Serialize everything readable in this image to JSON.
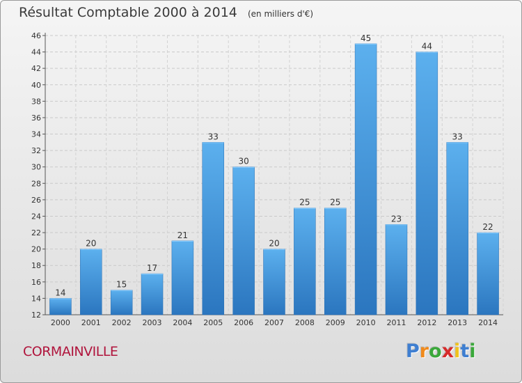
{
  "chart_data": {
    "type": "bar",
    "title": "Résultat Comptable 2000 à 2014",
    "subtitle": "(en milliers d'€)",
    "xlabel": "",
    "ylabel": "",
    "categories": [
      "2000",
      "2001",
      "2002",
      "2003",
      "2004",
      "2005",
      "2006",
      "2007",
      "2008",
      "2009",
      "2010",
      "2011",
      "2012",
      "2013",
      "2014"
    ],
    "values": [
      14,
      20,
      15,
      17,
      21,
      33,
      30,
      20,
      25,
      25,
      45,
      23,
      44,
      33,
      22
    ],
    "ylim": [
      12,
      46
    ],
    "yticks": [
      12,
      14,
      16,
      18,
      20,
      22,
      24,
      26,
      28,
      30,
      32,
      34,
      36,
      38,
      40,
      42,
      44,
      46
    ],
    "grid": true,
    "bar_color": "#3d8fd6"
  },
  "footer": {
    "commune": "CORMAINVILLE",
    "logo_letters": [
      "P",
      "r",
      "o",
      "x",
      "i",
      "t",
      "i"
    ],
    "logo_colors": [
      "#3f7fd1",
      "#f08a1c",
      "#3aa83a",
      "#d62b2b",
      "#f0c21c",
      "#3f7fd1",
      "#3aa83a"
    ]
  }
}
